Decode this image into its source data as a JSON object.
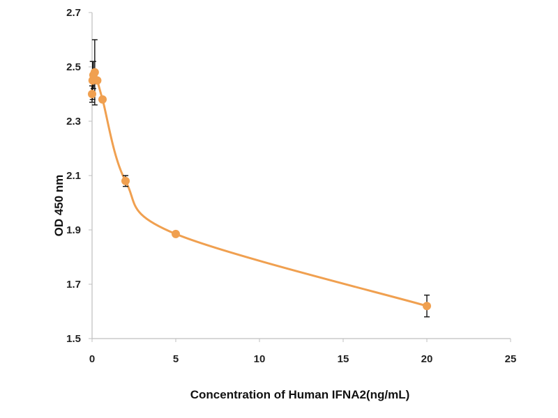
{
  "chart_data": {
    "type": "scatter",
    "title": "",
    "xlabel": "Concentration of Human IFNA2(ng/mL)",
    "ylabel": "OD 450 nm",
    "xlim": [
      0,
      25
    ],
    "ylim": [
      1.5,
      2.7
    ],
    "xticks": [
      "0",
      "5",
      "10",
      "15",
      "20",
      "25"
    ],
    "yticks": [
      "1.5",
      "1.7",
      "1.9",
      "2.1",
      "2.3",
      "2.5",
      "2.7"
    ],
    "grid": false,
    "legend": "none",
    "series": [
      {
        "color": "#F0A050",
        "line": "smooth",
        "points": [
          {
            "x": 0.0,
            "y": 2.4,
            "err": 0.03
          },
          {
            "x": 0.03,
            "y": 2.45,
            "err": 0.07
          },
          {
            "x": 0.08,
            "y": 2.47,
            "err": 0.05
          },
          {
            "x": 0.16,
            "y": 2.48,
            "err": 0.12
          },
          {
            "x": 0.31,
            "y": 2.45,
            "err": 0.0
          },
          {
            "x": 0.625,
            "y": 2.38,
            "err": 0.0
          },
          {
            "x": 2.0,
            "y": 2.08,
            "err": 0.02
          },
          {
            "x": 5.0,
            "y": 1.885,
            "err": 0.0
          },
          {
            "x": 20.0,
            "y": 1.62,
            "err": 0.04
          }
        ]
      }
    ]
  }
}
